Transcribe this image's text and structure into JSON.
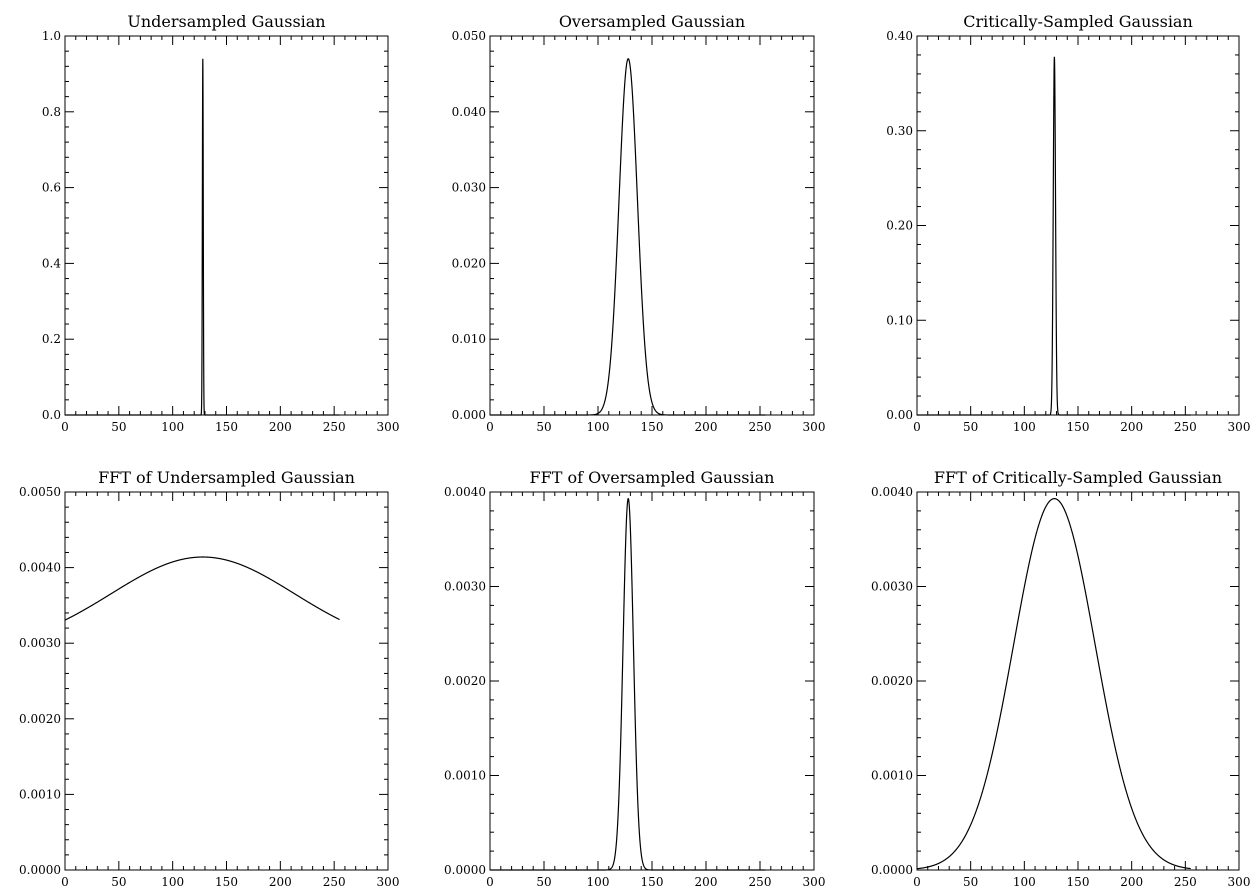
{
  "chart_data": [
    {
      "type": "line",
      "title": "Undersampled Gaussian",
      "xlabel": "",
      "ylabel": "",
      "xlim": [
        0,
        300
      ],
      "ylim": [
        0,
        1.0
      ],
      "xticks": [
        "0",
        "50",
        "100",
        "150",
        "200",
        "250",
        "300"
      ],
      "yticks": [
        "0.0",
        "0.2",
        "0.4",
        "0.6",
        "0.8",
        "1.0"
      ],
      "grid": false,
      "curve": {
        "kind": "gaussian",
        "x_start": 0,
        "x_end": 255,
        "center": 128,
        "sigma": 0.42,
        "peak": 0.94,
        "baseline": 0
      }
    },
    {
      "type": "line",
      "title": "Oversampled Gaussian",
      "xlabel": "",
      "ylabel": "",
      "xlim": [
        0,
        300
      ],
      "ylim": [
        0,
        0.05
      ],
      "xticks": [
        "0",
        "50",
        "100",
        "150",
        "200",
        "250",
        "300"
      ],
      "yticks": [
        "0.000",
        "0.010",
        "0.020",
        "0.030",
        "0.040",
        "0.050"
      ],
      "grid": false,
      "curve": {
        "kind": "gaussian",
        "x_start": 0,
        "x_end": 255,
        "center": 128,
        "sigma": 8.5,
        "peak": 0.047,
        "baseline": 0
      }
    },
    {
      "type": "line",
      "title": "Critically-Sampled Gaussian",
      "xlabel": "",
      "ylabel": "",
      "xlim": [
        0,
        300
      ],
      "ylim": [
        0,
        0.4
      ],
      "xticks": [
        "0",
        "50",
        "100",
        "150",
        "200",
        "250",
        "300"
      ],
      "yticks": [
        "0.00",
        "0.10",
        "0.20",
        "0.30",
        "0.40"
      ],
      "grid": false,
      "curve": {
        "kind": "gaussian",
        "x_start": 0,
        "x_end": 255,
        "center": 128,
        "sigma": 1.06,
        "peak": 0.378,
        "baseline": 0
      }
    },
    {
      "type": "line",
      "title": "FFT of Undersampled Gaussian",
      "xlabel": "",
      "ylabel": "",
      "xlim": [
        0,
        300
      ],
      "ylim": [
        0,
        0.005
      ],
      "xticks": [
        "0",
        "50",
        "100",
        "150",
        "200",
        "250",
        "300"
      ],
      "yticks": [
        "0.0000",
        "0.0010",
        "0.0020",
        "0.0030",
        "0.0040",
        "0.0050"
      ],
      "grid": false,
      "curve": {
        "kind": "gaussian",
        "x_start": 0,
        "x_end": 255,
        "center": 128,
        "sigma": 85,
        "peak": 0.00414,
        "baseline": 0.00291
      }
    },
    {
      "type": "line",
      "title": "FFT of Oversampled Gaussian",
      "xlabel": "",
      "ylabel": "",
      "xlim": [
        0,
        300
      ],
      "ylim": [
        0,
        0.004
      ],
      "xticks": [
        "0",
        "50",
        "100",
        "150",
        "200",
        "250",
        "300"
      ],
      "yticks": [
        "0.0000",
        "0.0010",
        "0.0020",
        "0.0030",
        "0.0040"
      ],
      "grid": false,
      "curve": {
        "kind": "gaussian",
        "x_start": 0,
        "x_end": 255,
        "center": 128,
        "sigma": 4.8,
        "peak": 0.00393,
        "baseline": 0
      }
    },
    {
      "type": "line",
      "title": "FFT of Critically-Sampled Gaussian",
      "xlabel": "",
      "ylabel": "",
      "xlim": [
        0,
        300
      ],
      "ylim": [
        0,
        0.004
      ],
      "xticks": [
        "0",
        "50",
        "100",
        "150",
        "200",
        "250",
        "300"
      ],
      "yticks": [
        "0.0000",
        "0.0010",
        "0.0020",
        "0.0030",
        "0.0040"
      ],
      "grid": false,
      "curve": {
        "kind": "gaussian",
        "x_start": 0,
        "x_end": 255,
        "center": 128,
        "sigma": 38,
        "peak": 0.00393,
        "baseline": 0
      }
    }
  ],
  "colors": {
    "line": "#000000",
    "background": "#ffffff"
  }
}
